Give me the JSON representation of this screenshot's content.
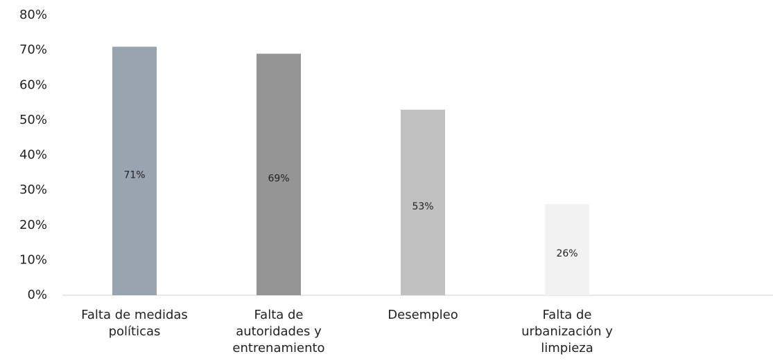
{
  "chart_data": {
    "type": "bar",
    "categories": [
      "Falta de medidas\npolíticas",
      "Falta de\nautoridades y\nentrenamiento",
      "Desempleo",
      "Falta de\nurbanización y\nlimpieza"
    ],
    "values": [
      71,
      69,
      53,
      26
    ],
    "value_labels": [
      "71%",
      "69%",
      "53%",
      "26%"
    ],
    "colors": [
      "#9aa3b0",
      "#959595",
      "#c0c0c0",
      "#f2f2f2"
    ],
    "ylim": [
      0,
      80
    ],
    "yticks": [
      {
        "value": 0,
        "label": "0%"
      },
      {
        "value": 10,
        "label": "10%"
      },
      {
        "value": 20,
        "label": "20%"
      },
      {
        "value": 30,
        "label": "30%"
      },
      {
        "value": 40,
        "label": "40%"
      },
      {
        "value": 50,
        "label": "50%"
      },
      {
        "value": 60,
        "label": "60%"
      },
      {
        "value": 70,
        "label": "70%"
      },
      {
        "value": 80,
        "label": "80%"
      }
    ],
    "grid": false
  }
}
